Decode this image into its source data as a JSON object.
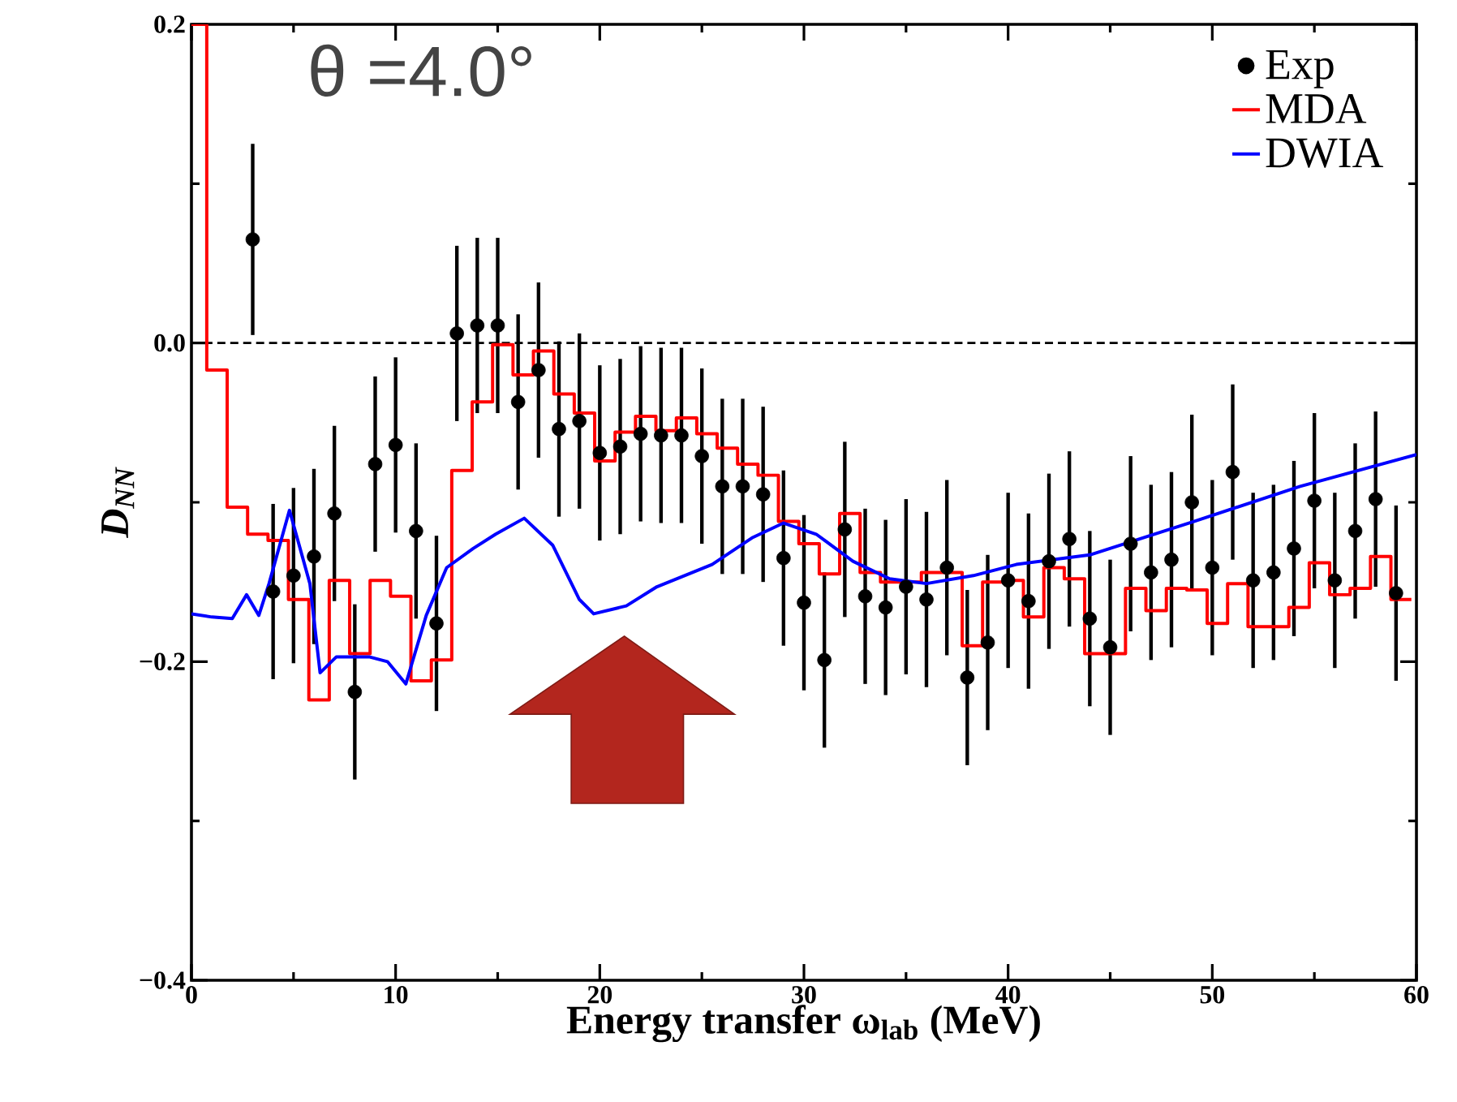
{
  "chart_data": {
    "type": "line",
    "xlabel": "Energy transfer ω$_{lab}$ (MeV)",
    "ylabel": "D$_{NN}$",
    "annotations": [
      "θ =4.0°"
    ],
    "xlim": [
      0,
      60
    ],
    "ylim": [
      -0.4,
      0.2
    ],
    "xticks": [
      0,
      10,
      20,
      30,
      40,
      50,
      60
    ],
    "yticks": [
      {
        "value": -0.4,
        "label": "−0.4"
      },
      {
        "value": -0.2,
        "label": "−0.2"
      },
      {
        "value": 0,
        "label": "0.0"
      },
      {
        "value": 0.2,
        "label": "0.2"
      }
    ],
    "grid": false,
    "legend": "top right",
    "ref_lines": [
      {
        "axis": "y",
        "value": 0,
        "color": "#000000",
        "line_style": "dashed"
      }
    ],
    "series": [
      {
        "name": "Exp",
        "type": "scatter",
        "marker": "circle",
        "color": "#000000",
        "x": [
          3,
          4,
          5,
          6,
          7,
          8,
          9,
          10,
          11,
          12,
          13,
          14,
          15,
          16,
          17,
          18,
          19,
          20,
          21,
          22,
          23,
          24,
          25,
          26,
          27,
          28,
          29,
          30,
          31,
          32,
          33,
          34,
          35,
          36,
          37,
          38,
          39,
          40,
          41,
          42,
          43,
          44,
          45,
          46,
          47,
          48,
          49,
          50,
          51,
          52,
          53,
          54,
          55,
          56,
          57,
          58,
          59
        ],
        "values": [
          0.065,
          -0.156,
          -0.146,
          -0.134,
          -0.107,
          -0.219,
          -0.076,
          -0.064,
          -0.118,
          -0.176,
          0.006,
          0.011,
          0.011,
          -0.037,
          -0.017,
          -0.054,
          -0.049,
          -0.069,
          -0.065,
          -0.057,
          -0.058,
          -0.058,
          -0.071,
          -0.09,
          -0.09,
          -0.095,
          -0.135,
          -0.163,
          -0.199,
          -0.117,
          -0.159,
          -0.166,
          -0.153,
          -0.161,
          -0.141,
          -0.21,
          -0.188,
          -0.149,
          -0.162,
          -0.137,
          -0.123,
          -0.173,
          -0.191,
          -0.126,
          -0.144,
          -0.136,
          -0.1,
          -0.141,
          -0.081,
          -0.149,
          -0.144,
          -0.129,
          -0.099,
          -0.149,
          -0.118,
          -0.098,
          -0.157
        ],
        "errors": [
          0.06,
          0.055,
          0.055,
          0.055,
          0.055,
          0.055,
          0.055,
          0.055,
          0.055,
          0.055,
          0.055,
          0.055,
          0.055,
          0.055,
          0.055,
          0.055,
          0.055,
          0.055,
          0.055,
          0.055,
          0.055,
          0.055,
          0.055,
          0.055,
          0.055,
          0.055,
          0.055,
          0.055,
          0.055,
          0.055,
          0.055,
          0.055,
          0.055,
          0.055,
          0.055,
          0.055,
          0.055,
          0.055,
          0.055,
          0.055,
          0.055,
          0.055,
          0.055,
          0.055,
          0.055,
          0.055,
          0.055,
          0.055,
          0.055,
          0.055,
          0.055,
          0.055,
          0.055,
          0.055,
          0.055,
          0.055,
          0.055
        ]
      },
      {
        "name": "MDA",
        "type": "step",
        "marker": "none",
        "color": "#ff0000",
        "x": [
          0,
          0.75,
          1.75,
          2.75,
          3.75,
          4.75,
          5.75,
          6.75,
          7.75,
          8.75,
          9.75,
          10.75,
          11.75,
          12.75,
          13.75,
          14.75,
          15.75,
          16.75,
          17.75,
          18.75,
          19.75,
          20.75,
          21.75,
          22.75,
          23.75,
          24.75,
          25.75,
          26.75,
          27.75,
          28.75,
          29.75,
          30.75,
          31.75,
          32.75,
          33.75,
          34.75,
          35.75,
          36.75,
          37.75,
          38.75,
          39.75,
          40.75,
          41.75,
          42.75,
          43.75,
          44.75,
          45.75,
          46.75,
          47.75,
          48.75,
          49.75,
          50.75,
          51.75,
          52.75,
          53.75,
          54.75,
          55.75,
          56.75,
          57.75,
          58.75,
          59.75
        ],
        "values": [
          0.2,
          -0.017,
          -0.103,
          -0.12,
          -0.124,
          -0.161,
          -0.224,
          -0.149,
          -0.195,
          -0.149,
          -0.159,
          -0.212,
          -0.199,
          -0.08,
          -0.037,
          -0.001,
          -0.02,
          -0.005,
          -0.032,
          -0.044,
          -0.074,
          -0.056,
          -0.046,
          -0.055,
          -0.047,
          -0.057,
          -0.066,
          -0.076,
          -0.083,
          -0.112,
          -0.126,
          -0.145,
          -0.107,
          -0.144,
          -0.15,
          -0.15,
          -0.144,
          -0.144,
          -0.19,
          -0.15,
          -0.149,
          -0.172,
          -0.141,
          -0.148,
          -0.195,
          -0.195,
          -0.154,
          -0.168,
          -0.154,
          -0.155,
          -0.176,
          -0.151,
          -0.178,
          -0.178,
          -0.166,
          -0.138,
          -0.158,
          -0.154,
          -0.134,
          -0.161,
          -0.161
        ]
      },
      {
        "name": "DWIA",
        "marker": "none",
        "color": "#0000ff",
        "x": [
          0,
          1,
          2,
          2.7,
          3.3,
          3.8,
          4.8,
          5.8,
          6.3,
          7.1,
          8.7,
          9.6,
          10.5,
          11.5,
          12.5,
          13.8,
          14.9,
          16.3,
          17.7,
          19,
          19.7,
          21.3,
          22.8,
          25.5,
          27.5,
          29,
          30.6,
          32.4,
          34.2,
          36,
          38.3,
          40.4,
          44,
          49.1,
          54.3,
          60
        ],
        "values": [
          -0.17,
          -0.172,
          -0.173,
          -0.158,
          -0.171,
          -0.151,
          -0.105,
          -0.151,
          -0.207,
          -0.197,
          -0.197,
          -0.2,
          -0.214,
          -0.171,
          -0.141,
          -0.129,
          -0.12,
          -0.11,
          -0.127,
          -0.161,
          -0.17,
          -0.165,
          -0.153,
          -0.139,
          -0.122,
          -0.113,
          -0.12,
          -0.137,
          -0.148,
          -0.151,
          -0.146,
          -0.139,
          -0.133,
          -0.112,
          -0.09,
          -0.07
        ]
      }
    ]
  }
}
